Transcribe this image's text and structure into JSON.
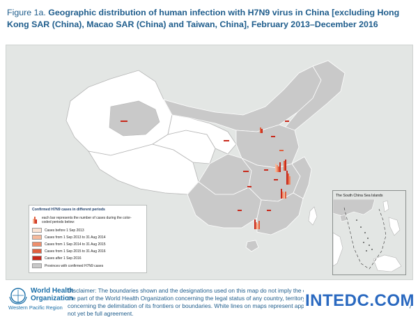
{
  "figure": {
    "label": "Figure 1a.",
    "title": "Geographic distribution of human infection with H7N9 virus in China [excluding Hong Kong SAR (China), Macao SAR (China) and Taiwan, China], February 2013–December 2016"
  },
  "legend": {
    "title": "Confirmed H7N9 cases in different periods",
    "bar_note": "each bar represents the number of cases during the color-coded periods below:",
    "items": [
      {
        "label": "Cases before 1 Sep 2013",
        "color": "#fbe3d4"
      },
      {
        "label": "Cases from 1 Sep 2013 to 31 Aug 2014",
        "color": "#f6b99b"
      },
      {
        "label": "Cases from 1 Sep 2014 to 31 Aug 2015",
        "color": "#ee8e6c"
      },
      {
        "label": "Cases from 1 Sep 2015 to 31 Aug 2016",
        "color": "#e0603f"
      },
      {
        "label": "Cases after 1 Sep 2016",
        "color": "#c8281a"
      },
      {
        "label": "Provinces with confirmed H7N9 cases",
        "color": "#c9c9c9"
      }
    ]
  },
  "inset": {
    "title": "The South China Sea Islands"
  },
  "colors": {
    "province_affected": "#c9c9c9",
    "province_unaffected": "#ffffff",
    "background": "#e3e6e4",
    "title": "#1f5d8c"
  },
  "footer": {
    "org_name_line1": "World Health",
    "org_name_line2": "Organization",
    "region": "Western Pacific Region",
    "disclaimer": "Disclaimer: The boundaries shown and the designations used on this map do not imply the expression of any opinion whatsoever on the part of the World Health Organization concerning the legal status of any country, territory, city or area or of its authorities, or concerning the delimitation of its frontiers or boundaries. White lines on maps represent approximate border lines for which there may not yet be full agreement."
  },
  "watermark": {
    "text": "INTEDC.COM"
  }
}
